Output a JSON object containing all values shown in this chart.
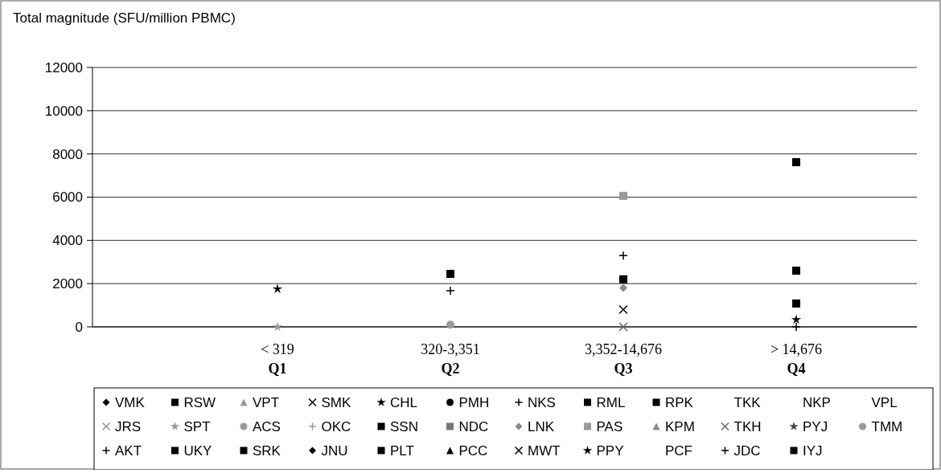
{
  "chart_data": {
    "type": "scatter",
    "ylabel": "Total magnitude (SFU/million PBMC)",
    "categories": [
      "< 319\nQ1",
      "320-3,351\nQ2",
      "3,352-14,676\nQ3",
      "> 14,676\nQ4"
    ],
    "ylim": [
      0,
      12000
    ],
    "yticks": [
      0,
      2000,
      4000,
      6000,
      8000,
      10000,
      12000
    ],
    "grid": "y",
    "legend": "bottom",
    "series": [
      {
        "name": "VMK",
        "color": "#000000",
        "marker": "diamond",
        "values": [
          null,
          null,
          null,
          null
        ]
      },
      {
        "name": "RSW",
        "color": "#000000",
        "marker": "square",
        "values": [
          null,
          null,
          null,
          2600
        ]
      },
      {
        "name": "VPT",
        "color": "#999999",
        "marker": "triangle",
        "values": [
          null,
          null,
          null,
          null
        ]
      },
      {
        "name": "SMK",
        "color": "#000000",
        "marker": "cross",
        "values": [
          null,
          null,
          800,
          null
        ]
      },
      {
        "name": "CHL",
        "color": "#000000",
        "marker": "star",
        "values": [
          1750,
          null,
          null,
          null
        ]
      },
      {
        "name": "PMH",
        "color": "#000000",
        "marker": "circle",
        "values": [
          null,
          null,
          null,
          null
        ]
      },
      {
        "name": "NKS",
        "color": "#000000",
        "marker": "plus",
        "values": [
          null,
          1670,
          null,
          null
        ]
      },
      {
        "name": "RML",
        "color": "#000000",
        "marker": "square",
        "values": [
          null,
          2450,
          null,
          null
        ]
      },
      {
        "name": "RPK",
        "color": "#000000",
        "marker": "square",
        "values": [
          null,
          null,
          null,
          7620
        ]
      },
      {
        "name": "TKK",
        "color": "#000000",
        "marker": "none",
        "values": [
          null,
          null,
          null,
          null
        ]
      },
      {
        "name": "NKP",
        "color": "#000000",
        "marker": "none",
        "values": [
          null,
          null,
          null,
          null
        ]
      },
      {
        "name": "VPL",
        "color": "#000000",
        "marker": "none",
        "values": [
          null,
          null,
          null,
          null
        ]
      },
      {
        "name": "JRS",
        "color": "#999999",
        "marker": "cross",
        "values": [
          null,
          null,
          null,
          null
        ]
      },
      {
        "name": "SPT",
        "color": "#999999",
        "marker": "star",
        "values": [
          0,
          null,
          null,
          null
        ]
      },
      {
        "name": "ACS",
        "color": "#999999",
        "marker": "circle",
        "values": [
          null,
          100,
          null,
          null
        ]
      },
      {
        "name": "OKC",
        "color": "#999999",
        "marker": "plus",
        "values": [
          null,
          null,
          null,
          null
        ]
      },
      {
        "name": "SSN",
        "color": "#000000",
        "marker": "square",
        "values": [
          null,
          null,
          2200,
          null
        ]
      },
      {
        "name": "NDC",
        "color": "#777777",
        "marker": "square",
        "values": [
          null,
          null,
          null,
          null
        ]
      },
      {
        "name": "LNK",
        "color": "#888888",
        "marker": "diamond",
        "values": [
          null,
          null,
          1800,
          null
        ]
      },
      {
        "name": "PAS",
        "color": "#999999",
        "marker": "square",
        "values": [
          null,
          null,
          6060,
          null
        ]
      },
      {
        "name": "KPM",
        "color": "#888888",
        "marker": "triangle",
        "values": [
          null,
          null,
          null,
          null
        ]
      },
      {
        "name": "TKH",
        "color": "#666666",
        "marker": "cross",
        "values": [
          null,
          null,
          0,
          null
        ]
      },
      {
        "name": "PYJ",
        "color": "#444444",
        "marker": "star",
        "values": [
          null,
          null,
          null,
          null
        ]
      },
      {
        "name": "TMM",
        "color": "#999999",
        "marker": "circle",
        "values": [
          null,
          null,
          null,
          null
        ]
      },
      {
        "name": "AKT",
        "color": "#000000",
        "marker": "plus",
        "values": [
          null,
          null,
          3300,
          null
        ]
      },
      {
        "name": "UKY",
        "color": "#000000",
        "marker": "square",
        "values": [
          null,
          null,
          null,
          null
        ]
      },
      {
        "name": "SRK",
        "color": "#000000",
        "marker": "square",
        "values": [
          null,
          null,
          null,
          1080
        ]
      },
      {
        "name": "JNU",
        "color": "#000000",
        "marker": "diamond",
        "values": [
          null,
          null,
          null,
          null
        ]
      },
      {
        "name": "PLT",
        "color": "#000000",
        "marker": "square",
        "values": [
          null,
          null,
          null,
          null
        ]
      },
      {
        "name": "PCC",
        "color": "#000000",
        "marker": "triangle",
        "values": [
          null,
          null,
          null,
          null
        ]
      },
      {
        "name": "MWT",
        "color": "#000000",
        "marker": "cross",
        "values": [
          null,
          null,
          null,
          null
        ]
      },
      {
        "name": "PPY",
        "color": "#000000",
        "marker": "star",
        "values": [
          null,
          null,
          null,
          330
        ]
      },
      {
        "name": "PCF",
        "color": "#000000",
        "marker": "none",
        "values": [
          null,
          null,
          null,
          null
        ]
      },
      {
        "name": "JDC",
        "color": "#000000",
        "marker": "plus",
        "values": [
          null,
          null,
          null,
          0
        ]
      },
      {
        "name": "IYJ",
        "color": "#000000",
        "marker": "square",
        "values": [
          null,
          null,
          null,
          null
        ]
      }
    ]
  }
}
